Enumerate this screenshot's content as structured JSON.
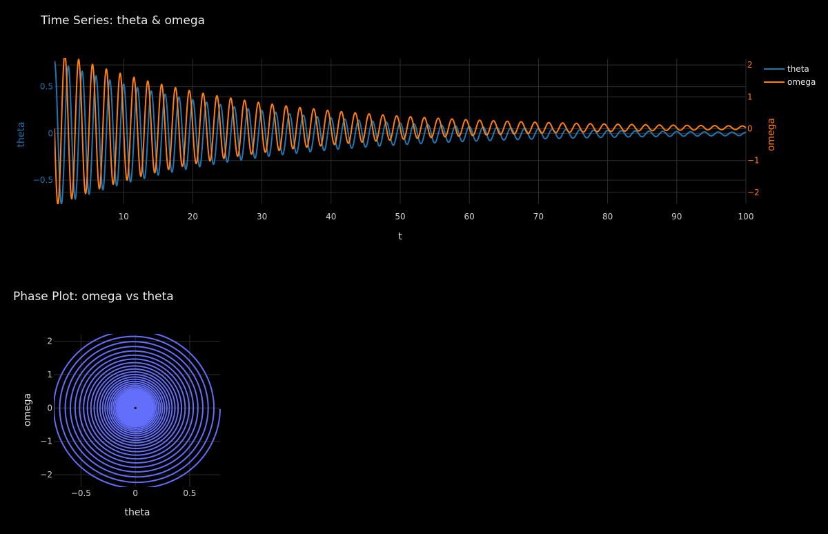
{
  "chart_data": [
    {
      "type": "line",
      "title": "Time Series: theta & omega",
      "xlabel": "t",
      "ylabel": "theta",
      "y2label": "omega",
      "xlim": [
        0,
        100
      ],
      "ylim": [
        -0.75,
        0.8
      ],
      "y2lim": [
        -2.35,
        2.2
      ],
      "xticks": [
        10,
        20,
        30,
        40,
        50,
        60,
        70,
        80,
        90,
        100
      ],
      "yticks": [
        -0.5,
        0,
        0.5
      ],
      "yticklabels": [
        "−0.5",
        "0",
        "0.5"
      ],
      "y2ticks": [
        -2,
        -1,
        0,
        1,
        2
      ],
      "y2ticklabels": [
        "−2",
        "−1",
        "0",
        "1",
        "2"
      ],
      "grid": true,
      "legend_position": "top-right",
      "series": [
        {
          "name": "theta",
          "axis": "left",
          "color": "#1f77b4",
          "description": "damped oscillation",
          "initial_value": 0.78,
          "period": 2.0,
          "decay_rate": 0.038,
          "offset": -0.005
        },
        {
          "name": "omega",
          "axis": "right",
          "color": "#ff7f0e",
          "description": "damped oscillation (derivative of theta)",
          "initial_value": 0.0,
          "period": 2.0,
          "decay_rate": 0.038,
          "offset": 0.03
        }
      ]
    },
    {
      "type": "line",
      "title": "Phase Plot: omega vs theta",
      "xlabel": "theta",
      "ylabel": "omega",
      "xlim": [
        -0.75,
        0.78
      ],
      "ylim": [
        -2.35,
        2.2
      ],
      "xticks": [
        -0.5,
        0,
        0.5
      ],
      "xticklabels": [
        "−0.5",
        "0",
        "0.5"
      ],
      "yticks": [
        -2,
        -1,
        0,
        1,
        2
      ],
      "yticklabels": [
        "−2",
        "−1",
        "0",
        "1",
        "2"
      ],
      "grid": true,
      "series": [
        {
          "color": "#636efa",
          "description": "inward spiral from theta=0.78, omega=0 toward origin"
        }
      ]
    }
  ]
}
